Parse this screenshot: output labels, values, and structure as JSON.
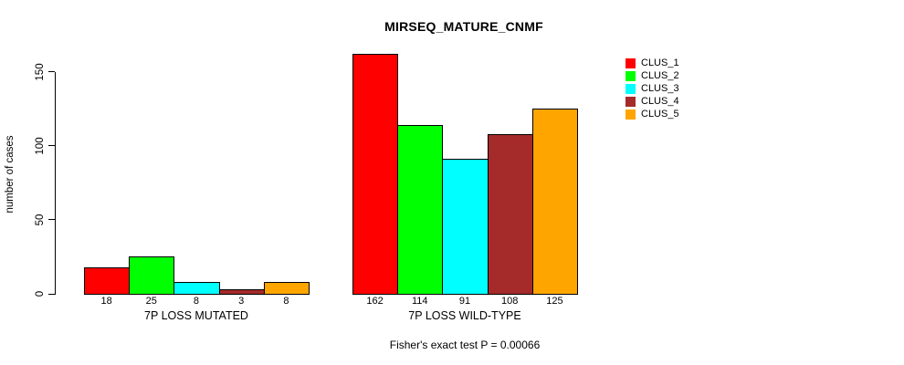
{
  "title": "MIRSEQ_MATURE_CNMF",
  "subtitle": "Fisher's exact test P = 0.00066",
  "chart_data": {
    "type": "bar",
    "title": "MIRSEQ_MATURE_CNMF",
    "ylabel": "number of cases",
    "xlabel": "",
    "ylim": [
      0,
      150
    ],
    "yticks": [
      "0",
      "50",
      "100",
      "150"
    ],
    "ytick_values": [
      0,
      50,
      100,
      150
    ],
    "grid": false,
    "legend_position": "top-right",
    "axis_color": "#000000",
    "bar_border_color": "#000000",
    "series_names": [
      "CLUS_1",
      "CLUS_2",
      "CLUS_3",
      "CLUS_4",
      "CLUS_5"
    ],
    "colors": [
      "#FF0000",
      "#00FF00",
      "#00FFFF",
      "#A52A2A",
      "#FFA500"
    ],
    "groups": [
      {
        "label": "7P LOSS MUTATED",
        "values": [
          18,
          25,
          8,
          3,
          8
        ]
      },
      {
        "label": "7P LOSS WILD-TYPE",
        "values": [
          162,
          114,
          91,
          108,
          125
        ]
      }
    ],
    "annotation": "Fisher's exact test P = 0.00066"
  }
}
